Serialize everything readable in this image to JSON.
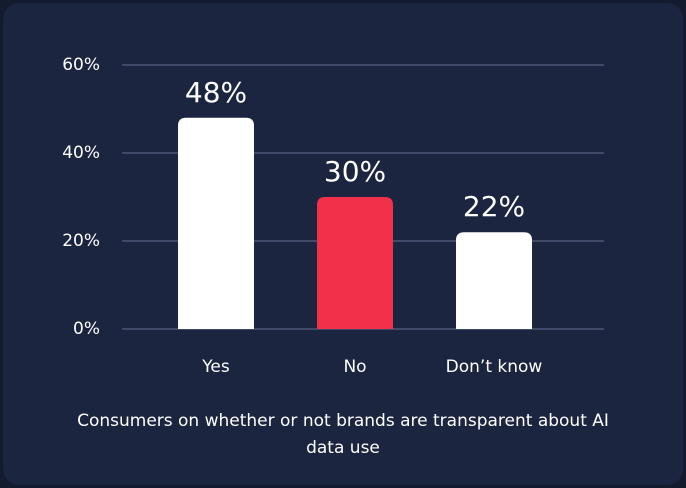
{
  "chart_data": {
    "type": "bar",
    "title": "Consumers on whether or not brands are transparent about AI data use",
    "categories": [
      "Yes",
      "No",
      "Don’t know"
    ],
    "values": [
      48,
      30,
      22
    ],
    "value_labels": [
      "48%",
      "30%",
      "22%"
    ],
    "colors": [
      "#ffffff",
      "#f2304a",
      "#ffffff"
    ],
    "ylim": [
      0,
      60
    ],
    "yticks": [
      {
        "value": 0,
        "label": "0%"
      },
      {
        "value": 20,
        "label": "20%"
      },
      {
        "value": 40,
        "label": "40%"
      },
      {
        "value": 60,
        "label": "60%"
      }
    ],
    "grid": true
  }
}
